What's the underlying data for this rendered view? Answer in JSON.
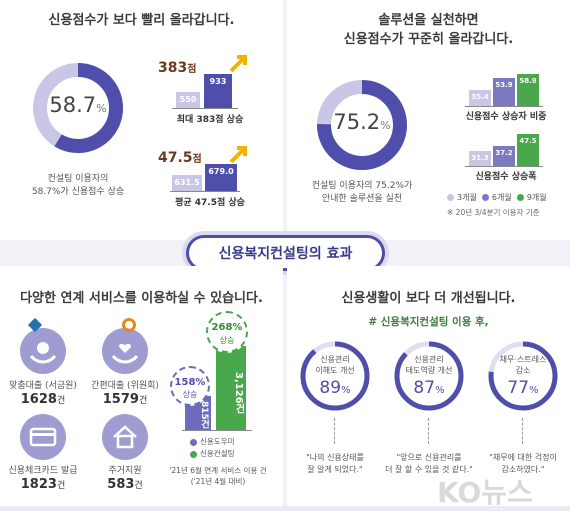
{
  "panel_tl": {
    "title": "신용점수가 보다 빨리 올라갑니다.",
    "donut_value": "58.7",
    "donut_unit": "%",
    "caption_line1": "컨설팅 이용자의",
    "caption_line2": "58.7%가 신용점수 상승",
    "max": {
      "increase": "383",
      "increase_unit": "점",
      "before": "550",
      "after": "933",
      "label": "최대 383점 상승"
    },
    "avg": {
      "increase": "47.5",
      "increase_unit": "점",
      "before": "631.5",
      "after": "679.0",
      "label": "평균 47.5점 상승"
    }
  },
  "panel_tr": {
    "title_line1": "솔루션을 실천하면",
    "title_line2": "신용점수가 꾸준히 올라갑니다.",
    "donut_value": "75.2",
    "donut_unit": "%",
    "caption_line1": "컨설팅 이용자의 75.2%가",
    "caption_line2": "안내한 솔루션을 실천",
    "group1": {
      "values": [
        "35.4",
        "53.9",
        "58.9"
      ],
      "label": "신용점수 상승자 비중"
    },
    "group2": {
      "values": [
        "31.3",
        "37.2",
        "47.5"
      ],
      "label": "신용점수 상승폭"
    },
    "legend": [
      "3개월",
      "6개월",
      "9개월"
    ],
    "note": "※ 20년 3/4분기 이용자 기준"
  },
  "center": {
    "title": "신용복지컨설팅의 효과"
  },
  "panel_bl": {
    "title": "다양한 연계 서비스를 이용하실 수 있습니다.",
    "services": [
      {
        "icon": "hands-coin-icon",
        "label": "맞춤대출 (서금원)",
        "count": "1628",
        "unit": "건"
      },
      {
        "icon": "hands-heart-icon",
        "label": "간편대출 (위원회)",
        "count": "1579",
        "unit": "건"
      },
      {
        "icon": "card-icon",
        "label": "신용체크카드 발급",
        "count": "1823",
        "unit": "건"
      },
      {
        "icon": "house-icon",
        "label": "주거지원",
        "count": "583",
        "unit": "건"
      }
    ],
    "chart": {
      "left_bar": "815건",
      "right_bar": "3,126건",
      "left_badge_value": "158%",
      "left_badge_word": "상승",
      "right_badge_value": "268%",
      "right_badge_word": "상승",
      "legend": [
        "신용도우미",
        "신용컨설팅"
      ],
      "note_line1": "'21년 6월 연계 서비스 이용 건",
      "note_line2": "('21년 4월 대비)"
    }
  },
  "panel_br": {
    "title": "신용생활이 보다 더 개선됩니다.",
    "subtitle": "# 신용복지컨설팅 이용 후,",
    "items": [
      {
        "label_line1": "신용관리",
        "label_line2": "이해도 개선",
        "value": "89",
        "unit": "%",
        "quote_line1": "\"나의 신용상태를",
        "quote_line2": "잘 알게 되었다.\""
      },
      {
        "label_line1": "신용관리",
        "label_line2": "태도역량 개선",
        "value": "87",
        "unit": "%",
        "quote_line1": "\"앞으로 신용관리를",
        "quote_line2": "더 잘 할 수 있을 것 같다.\""
      },
      {
        "label_line1": "채무·스트레스",
        "label_line2": "감소",
        "value": "77",
        "unit": "%",
        "quote_line1": "\"채무에 대한 걱정이",
        "quote_line2": "감소하였다.\""
      }
    ]
  },
  "watermark": "KO뉴스"
}
